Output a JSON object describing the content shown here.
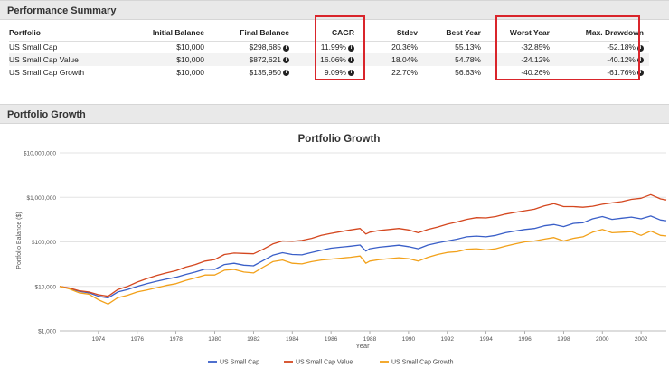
{
  "sections": {
    "performance_title": "Performance Summary",
    "growth_title": "Portfolio Growth"
  },
  "performance_table": {
    "headers": [
      "Portfolio",
      "Initial Balance",
      "Final Balance",
      "CAGR",
      "Stdev",
      "Best Year",
      "Worst Year",
      "Max. Drawdown"
    ],
    "rows": [
      [
        "US Small Cap",
        "$10,000",
        "$298,685",
        "11.99%",
        "20.36%",
        "55.13%",
        "-32.85%",
        "-52.18%"
      ],
      [
        "US Small Cap Value",
        "$10,000",
        "$872,621",
        "16.06%",
        "18.04%",
        "54.78%",
        "-24.12%",
        "-40.12%"
      ],
      [
        "US Small Cap Growth",
        "$10,000",
        "$135,950",
        "9.09%",
        "22.70%",
        "56.63%",
        "-40.26%",
        "-61.76%"
      ]
    ],
    "info_icon": "i"
  },
  "colors": {
    "small_cap": "#3a5fc8",
    "small_cap_value": "#d4471f",
    "small_cap_growth": "#f2a11a",
    "highlight": "#d9252b"
  },
  "chart_data": {
    "type": "line",
    "title": "Portfolio Growth",
    "xlabel": "Year",
    "ylabel": "Portfolio Balance ($)",
    "yscale": "log",
    "ylim": [
      1000,
      10000000
    ],
    "xlim": [
      1972,
      2003.3
    ],
    "y_ticks": [
      1000,
      10000,
      100000,
      1000000,
      10000000
    ],
    "y_tick_labels": [
      "$1,000",
      "$10,000",
      "$100,000",
      "$1,000,000",
      "$10,000,000"
    ],
    "x_ticks": [
      1974,
      1976,
      1978,
      1980,
      1982,
      1984,
      1986,
      1988,
      1990,
      1992,
      1994,
      1996,
      1998,
      2000,
      2002
    ],
    "x_tick_labels": [
      "1974",
      "1976",
      "1978",
      "1980",
      "1982",
      "1984",
      "1986",
      "1988",
      "1990",
      "1992",
      "1994",
      "1996",
      "1998",
      "2000",
      "2002"
    ],
    "legend_position": "bottom",
    "series": [
      {
        "name": "US Small Cap",
        "color": "#3a5fc8",
        "points": [
          [
            1972.0,
            10000
          ],
          [
            1972.5,
            9000
          ],
          [
            1973.0,
            7800
          ],
          [
            1973.5,
            7200
          ],
          [
            1974.0,
            6000
          ],
          [
            1974.5,
            5500
          ],
          [
            1975.0,
            7500
          ],
          [
            1975.5,
            8500
          ],
          [
            1976.0,
            10000
          ],
          [
            1976.5,
            11500
          ],
          [
            1977.0,
            13000
          ],
          [
            1977.5,
            14500
          ],
          [
            1978.0,
            16000
          ],
          [
            1978.5,
            18500
          ],
          [
            1979.0,
            21000
          ],
          [
            1979.5,
            24500
          ],
          [
            1980.0,
            24000
          ],
          [
            1980.5,
            31000
          ],
          [
            1981.0,
            33000
          ],
          [
            1981.5,
            30000
          ],
          [
            1982.0,
            29000
          ],
          [
            1982.5,
            38000
          ],
          [
            1983.0,
            50000
          ],
          [
            1983.5,
            57000
          ],
          [
            1984.0,
            52000
          ],
          [
            1984.5,
            51000
          ],
          [
            1985.0,
            58000
          ],
          [
            1985.5,
            65000
          ],
          [
            1986.0,
            72000
          ],
          [
            1986.5,
            76000
          ],
          [
            1987.0,
            80000
          ],
          [
            1987.5,
            85000
          ],
          [
            1987.8,
            62000
          ],
          [
            1988.0,
            70000
          ],
          [
            1988.5,
            76000
          ],
          [
            1989.0,
            80000
          ],
          [
            1989.5,
            84000
          ],
          [
            1990.0,
            78000
          ],
          [
            1990.5,
            70000
          ],
          [
            1991.0,
            85000
          ],
          [
            1991.5,
            95000
          ],
          [
            1992.0,
            105000
          ],
          [
            1992.5,
            115000
          ],
          [
            1993.0,
            130000
          ],
          [
            1993.5,
            135000
          ],
          [
            1994.0,
            130000
          ],
          [
            1994.5,
            140000
          ],
          [
            1995.0,
            160000
          ],
          [
            1995.5,
            175000
          ],
          [
            1996.0,
            190000
          ],
          [
            1996.5,
            200000
          ],
          [
            1997.0,
            230000
          ],
          [
            1997.5,
            245000
          ],
          [
            1998.0,
            220000
          ],
          [
            1998.5,
            260000
          ],
          [
            1999.0,
            270000
          ],
          [
            1999.5,
            330000
          ],
          [
            2000.0,
            370000
          ],
          [
            2000.5,
            320000
          ],
          [
            2001.0,
            340000
          ],
          [
            2001.5,
            360000
          ],
          [
            2002.0,
            330000
          ],
          [
            2002.5,
            380000
          ],
          [
            2003.0,
            310000
          ],
          [
            2003.3,
            298685
          ]
        ]
      },
      {
        "name": "US Small Cap Value",
        "color": "#d4471f",
        "points": [
          [
            1972.0,
            10000
          ],
          [
            1972.5,
            9200
          ],
          [
            1973.0,
            8000
          ],
          [
            1973.5,
            7500
          ],
          [
            1974.0,
            6500
          ],
          [
            1974.5,
            6000
          ],
          [
            1975.0,
            8500
          ],
          [
            1975.5,
            10000
          ],
          [
            1976.0,
            12500
          ],
          [
            1976.5,
            15000
          ],
          [
            1977.0,
            17500
          ],
          [
            1977.5,
            20000
          ],
          [
            1978.0,
            22500
          ],
          [
            1978.5,
            27000
          ],
          [
            1979.0,
            31000
          ],
          [
            1979.5,
            37000
          ],
          [
            1980.0,
            40000
          ],
          [
            1980.5,
            52000
          ],
          [
            1981.0,
            56000
          ],
          [
            1981.5,
            55000
          ],
          [
            1982.0,
            54000
          ],
          [
            1982.5,
            68000
          ],
          [
            1983.0,
            90000
          ],
          [
            1983.5,
            105000
          ],
          [
            1984.0,
            103000
          ],
          [
            1984.5,
            108000
          ],
          [
            1985.0,
            120000
          ],
          [
            1985.5,
            140000
          ],
          [
            1986.0,
            155000
          ],
          [
            1986.5,
            170000
          ],
          [
            1987.0,
            185000
          ],
          [
            1987.5,
            200000
          ],
          [
            1987.8,
            150000
          ],
          [
            1988.0,
            165000
          ],
          [
            1988.5,
            180000
          ],
          [
            1989.0,
            190000
          ],
          [
            1989.5,
            200000
          ],
          [
            1990.0,
            185000
          ],
          [
            1990.5,
            160000
          ],
          [
            1991.0,
            190000
          ],
          [
            1991.5,
            215000
          ],
          [
            1992.0,
            250000
          ],
          [
            1992.5,
            280000
          ],
          [
            1993.0,
            320000
          ],
          [
            1993.5,
            350000
          ],
          [
            1994.0,
            345000
          ],
          [
            1994.5,
            370000
          ],
          [
            1995.0,
            420000
          ],
          [
            1995.5,
            460000
          ],
          [
            1996.0,
            500000
          ],
          [
            1996.5,
            540000
          ],
          [
            1997.0,
            640000
          ],
          [
            1997.5,
            720000
          ],
          [
            1998.0,
            620000
          ],
          [
            1998.5,
            620000
          ],
          [
            1999.0,
            600000
          ],
          [
            1999.5,
            630000
          ],
          [
            2000.0,
            700000
          ],
          [
            2000.5,
            750000
          ],
          [
            2001.0,
            800000
          ],
          [
            2001.5,
            900000
          ],
          [
            2002.0,
            950000
          ],
          [
            2002.5,
            1150000
          ],
          [
            2003.0,
            920000
          ],
          [
            2003.3,
            872621
          ]
        ]
      },
      {
        "name": "US Small Cap Growth",
        "color": "#f2a11a",
        "points": [
          [
            1972.0,
            10000
          ],
          [
            1972.5,
            8800
          ],
          [
            1973.0,
            7200
          ],
          [
            1973.5,
            6700
          ],
          [
            1974.0,
            5000
          ],
          [
            1974.5,
            4000
          ],
          [
            1975.0,
            5600
          ],
          [
            1975.5,
            6300
          ],
          [
            1976.0,
            7500
          ],
          [
            1976.5,
            8300
          ],
          [
            1977.0,
            9300
          ],
          [
            1977.5,
            10500
          ],
          [
            1978.0,
            11500
          ],
          [
            1978.5,
            13500
          ],
          [
            1979.0,
            15500
          ],
          [
            1979.5,
            18000
          ],
          [
            1980.0,
            18000
          ],
          [
            1980.5,
            23000
          ],
          [
            1981.0,
            24000
          ],
          [
            1981.5,
            21000
          ],
          [
            1982.0,
            20000
          ],
          [
            1982.5,
            27000
          ],
          [
            1983.0,
            36000
          ],
          [
            1983.5,
            39000
          ],
          [
            1984.0,
            33000
          ],
          [
            1984.5,
            32000
          ],
          [
            1985.0,
            36000
          ],
          [
            1985.5,
            39000
          ],
          [
            1986.0,
            41000
          ],
          [
            1986.5,
            43000
          ],
          [
            1987.0,
            45000
          ],
          [
            1987.5,
            48000
          ],
          [
            1987.8,
            33000
          ],
          [
            1988.0,
            37000
          ],
          [
            1988.5,
            40000
          ],
          [
            1989.0,
            42000
          ],
          [
            1989.5,
            44000
          ],
          [
            1990.0,
            42000
          ],
          [
            1990.5,
            37000
          ],
          [
            1991.0,
            45000
          ],
          [
            1991.5,
            52000
          ],
          [
            1992.0,
            58000
          ],
          [
            1992.5,
            60000
          ],
          [
            1993.0,
            68000
          ],
          [
            1993.5,
            70000
          ],
          [
            1994.0,
            66000
          ],
          [
            1994.5,
            70000
          ],
          [
            1995.0,
            80000
          ],
          [
            1995.5,
            90000
          ],
          [
            1996.0,
            100000
          ],
          [
            1996.5,
            105000
          ],
          [
            1997.0,
            115000
          ],
          [
            1997.5,
            125000
          ],
          [
            1998.0,
            105000
          ],
          [
            1998.5,
            120000
          ],
          [
            1999.0,
            130000
          ],
          [
            1999.5,
            165000
          ],
          [
            2000.0,
            190000
          ],
          [
            2000.5,
            160000
          ],
          [
            2001.0,
            165000
          ],
          [
            2001.5,
            170000
          ],
          [
            2002.0,
            140000
          ],
          [
            2002.5,
            175000
          ],
          [
            2003.0,
            140000
          ],
          [
            2003.3,
            135950
          ]
        ]
      }
    ]
  }
}
